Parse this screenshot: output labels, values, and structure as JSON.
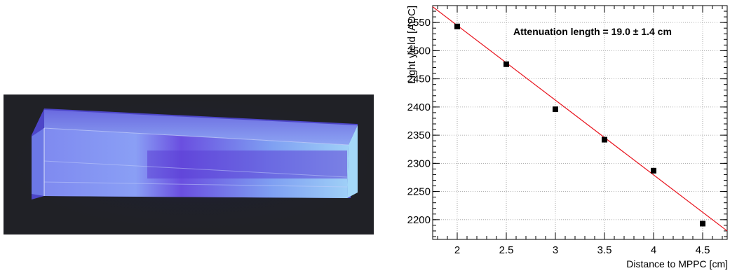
{
  "photo": {
    "subject": "scintillator-crystal-under-uv-light"
  },
  "chart_data": {
    "type": "scatter",
    "xlabel": "Distance to MPPC [cm]",
    "ylabel": "Light yield [ADC]",
    "xlim": [
      1.75,
      4.75
    ],
    "ylim": [
      2165,
      2580
    ],
    "x_ticks": [
      2,
      2.5,
      3,
      3.5,
      4,
      4.5
    ],
    "x_tick_labels": [
      "2",
      "2.5",
      "3",
      "3.5",
      "4",
      "4.5"
    ],
    "y_ticks": [
      2200,
      2250,
      2300,
      2350,
      2400,
      2450,
      2500,
      2550
    ],
    "y_tick_labels": [
      "2200",
      "2250",
      "2300",
      "2350",
      "2400",
      "2450",
      "2500",
      "2550"
    ],
    "grid": true,
    "annotation": "Attenuation length = 19.0 ± 1.4 cm",
    "series": [
      {
        "marker": "square",
        "color": "#000000",
        "x": [
          2.0,
          2.5,
          3.0,
          3.5,
          4.0,
          4.5
        ],
        "y": [
          2543,
          2476,
          2396,
          2342,
          2287,
          2193
        ]
      }
    ],
    "fit": {
      "color": "#e8141e",
      "x": [
        1.75,
        4.75
      ],
      "y": [
        2578,
        2180
      ]
    }
  }
}
